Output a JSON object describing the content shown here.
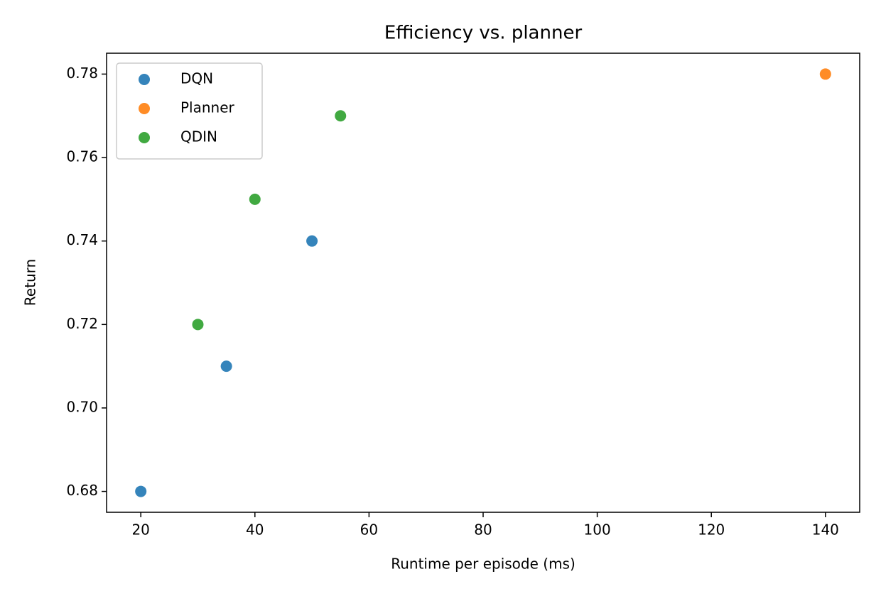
{
  "chart_data": {
    "type": "scatter",
    "title": "Efficiency vs. planner",
    "xlabel": "Runtime per episode (ms)",
    "ylabel": "Return",
    "series": [
      {
        "name": "DQN",
        "color": "#1f77b4",
        "x": [
          20,
          35,
          50
        ],
        "values": [
          0.68,
          0.71,
          0.74
        ]
      },
      {
        "name": "Planner",
        "color": "#ff7f0e",
        "x": [
          140
        ],
        "values": [
          0.78
        ]
      },
      {
        "name": "QDIN",
        "color": "#2ca02c",
        "x": [
          30,
          40,
          55
        ],
        "values": [
          0.72,
          0.75,
          0.77
        ]
      }
    ],
    "xlim": [
      14,
      146
    ],
    "xticks": [
      20,
      40,
      60,
      80,
      100,
      120,
      140
    ],
    "ylim": [
      0.675,
      0.785
    ],
    "yticks": [
      0.68,
      {
        "value": 0.7,
        "label": "0.70"
      },
      0.72,
      0.74,
      0.76,
      0.78
    ],
    "grid": false,
    "legend": "upper left"
  }
}
